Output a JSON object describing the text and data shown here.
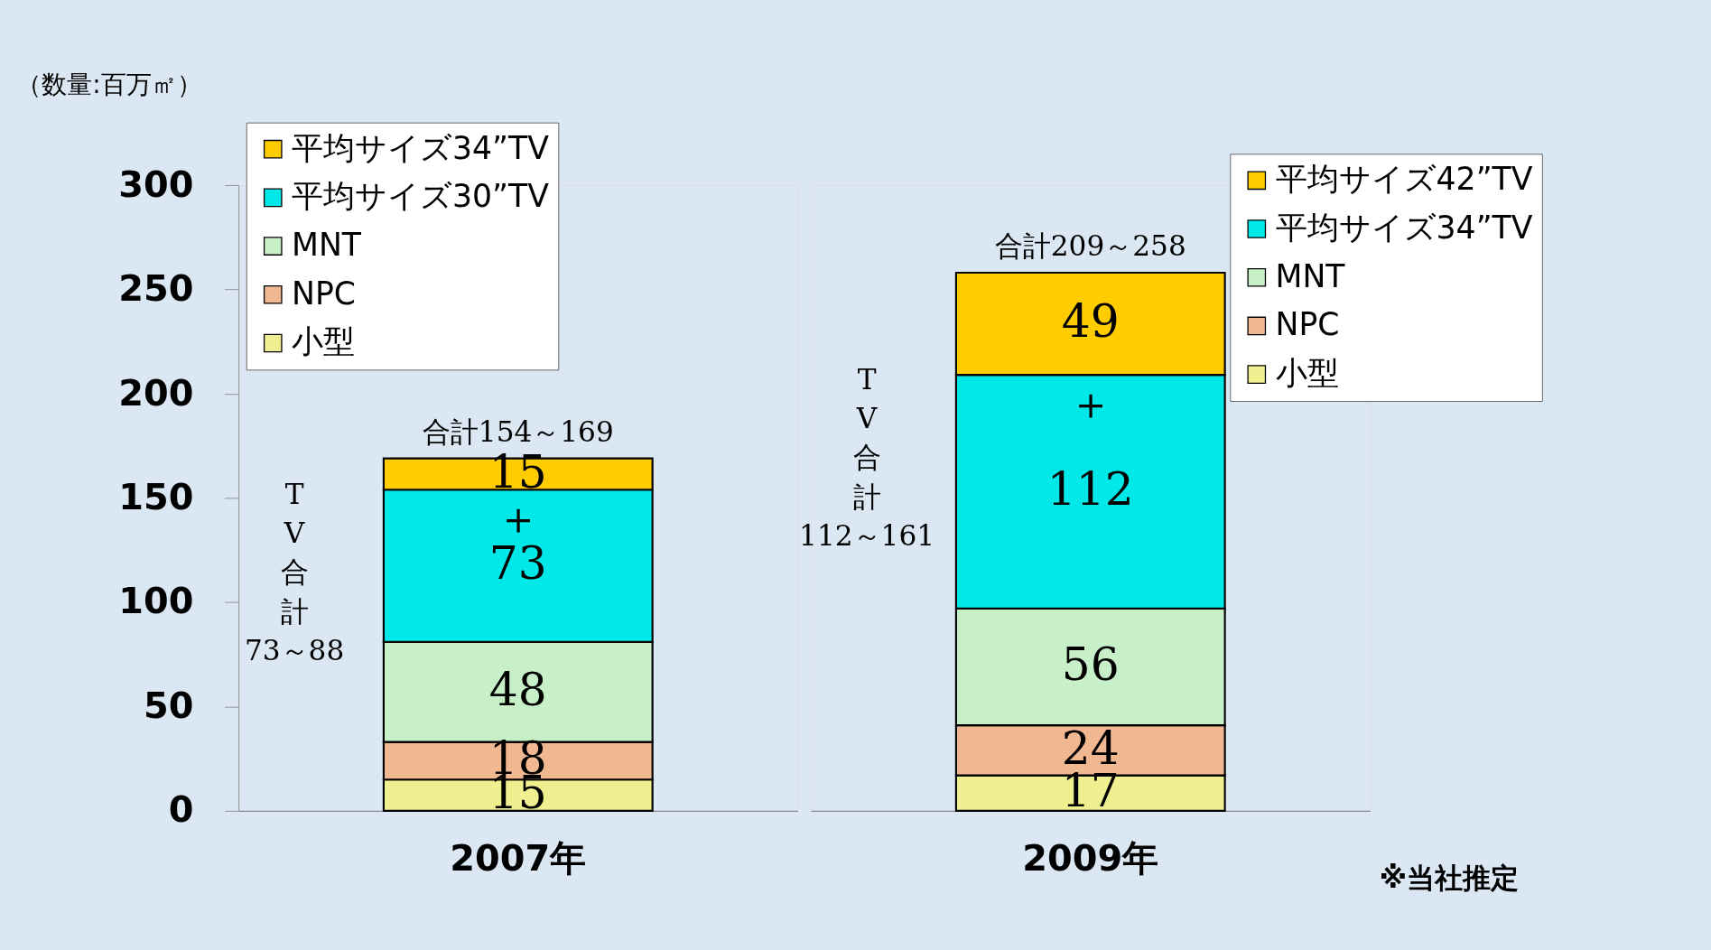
{
  "chart_data": [
    {
      "type": "bar",
      "stacked": true,
      "ylabel": "（数量:百万㎡）",
      "categories": [
        "2007年"
      ],
      "ylim": [
        0,
        300
      ],
      "yticks": [
        0,
        50,
        100,
        150,
        200,
        250,
        300
      ],
      "data_labels": true,
      "legend": "top left",
      "grid": false,
      "series": [
        {
          "name": "小型",
          "color": "#f0f090",
          "values": [
            15
          ]
        },
        {
          "name": "NPC",
          "color": "#f0b890",
          "values": [
            18
          ]
        },
        {
          "name": "MNT",
          "color": "#c8f0c8",
          "values": [
            48
          ]
        },
        {
          "name": "平均サイズ30”TV",
          "color": "#00e8e8",
          "values": [
            73
          ]
        },
        {
          "name": "平均サイズ34”TV",
          "color": "#ffcc00",
          "values": [
            15
          ]
        }
      ],
      "annotations": [
        "合計154～169",
        "TV合計73～88",
        "＋"
      ]
    },
    {
      "type": "bar",
      "stacked": true,
      "categories": [
        "2009年"
      ],
      "ylim": [
        0,
        300
      ],
      "yticks": [
        0,
        50,
        100,
        150,
        200,
        250,
        300
      ],
      "tick_labels": "x",
      "data_labels": true,
      "legend": "top right",
      "grid": false,
      "series": [
        {
          "name": "小型",
          "color": "#f0f090",
          "values": [
            17
          ]
        },
        {
          "name": "NPC",
          "color": "#f0b890",
          "values": [
            24
          ]
        },
        {
          "name": "MNT",
          "color": "#c8f0c8",
          "values": [
            56
          ]
        },
        {
          "name": "平均サイズ34”TV",
          "color": "#00e8e8",
          "values": [
            112
          ]
        },
        {
          "name": "平均サイズ42”TV",
          "color": "#ffcc00",
          "values": [
            49
          ]
        }
      ],
      "annotations": [
        "合計209～258",
        "TV合計112～161",
        "＋",
        "※当社推定"
      ]
    }
  ]
}
